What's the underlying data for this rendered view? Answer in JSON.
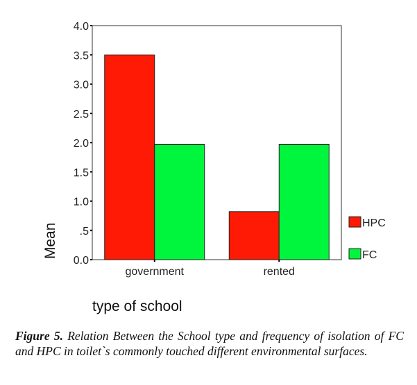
{
  "chart_data": {
    "type": "bar",
    "categories": [
      "government",
      "rented"
    ],
    "series": [
      {
        "name": "HPC",
        "color": "#ff1a05",
        "values": [
          3.5,
          0.82
        ]
      },
      {
        "name": "FC",
        "color": "#00f53d",
        "values": [
          1.97,
          1.97
        ]
      }
    ],
    "xlabel": "type of school",
    "ylabel": "Mean",
    "ylim": [
      0,
      4
    ],
    "yticks": [
      0,
      0.5,
      1,
      1.5,
      2,
      2.5,
      3,
      3.5,
      4
    ],
    "ytick_labels": [
      "0.0",
      ".5",
      "1.0",
      "1.5",
      "2.0",
      "2.5",
      "3.0",
      "3.5",
      "4.0"
    ],
    "legend_position": "right",
    "grid": false
  },
  "caption": {
    "label": "Figure 5.",
    "text": " Relation Between the School type and frequency of isolation of FC and HPC in toilet`s commonly touched different environmental surfaces."
  }
}
